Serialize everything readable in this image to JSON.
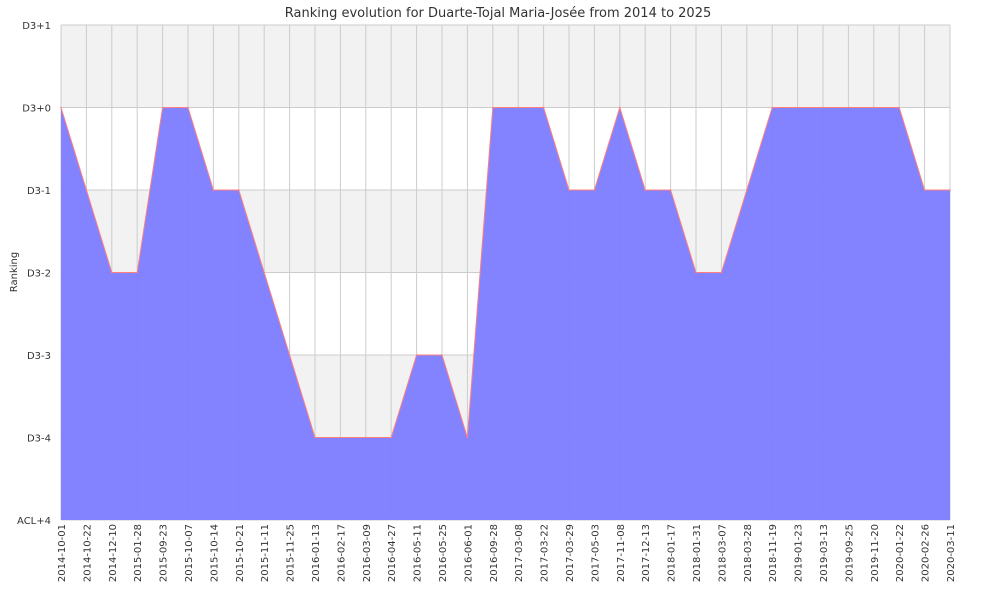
{
  "chart_data": {
    "type": "area",
    "title": "Ranking evolution for Duarte-Tojal Maria-Josée from 2014 to 2025",
    "xlabel": "",
    "ylabel": "Ranking",
    "y_tick_labels": [
      "ACL+4",
      "D3-4",
      "D3-3",
      "D3-2",
      "D3-1",
      "D3+0",
      "D3+1"
    ],
    "ylim": [
      0,
      6
    ],
    "grid": true,
    "colors": {
      "fill": "#7f7fff",
      "line": "#ff7f7f",
      "band": "#f2f2f2",
      "grid": "#cccccc"
    },
    "x": [
      "2014-10-01",
      "2014-10-22",
      "2014-12-10",
      "2015-01-28",
      "2015-09-23",
      "2015-10-07",
      "2015-10-14",
      "2015-10-21",
      "2015-11-11",
      "2015-11-25",
      "2016-01-13",
      "2016-02-17",
      "2016-03-09",
      "2016-04-27",
      "2016-05-11",
      "2016-05-25",
      "2016-06-01",
      "2016-09-28",
      "2017-03-08",
      "2017-03-22",
      "2017-03-29",
      "2017-05-03",
      "2017-11-08",
      "2017-12-13",
      "2018-01-17",
      "2018-01-31",
      "2018-03-07",
      "2018-03-28",
      "2018-11-19",
      "2019-01-23",
      "2019-03-13",
      "2019-09-25",
      "2019-11-20",
      "2020-01-22",
      "2020-02-26",
      "2020-03-11"
    ],
    "values": [
      5,
      4,
      3,
      3,
      5,
      5,
      4,
      4,
      3,
      2,
      1,
      1,
      1,
      1,
      2,
      2,
      1,
      5,
      5,
      5,
      4,
      4,
      5,
      4,
      4,
      3,
      3,
      4,
      5,
      5,
      5,
      5,
      5,
      5,
      4,
      4
    ]
  }
}
